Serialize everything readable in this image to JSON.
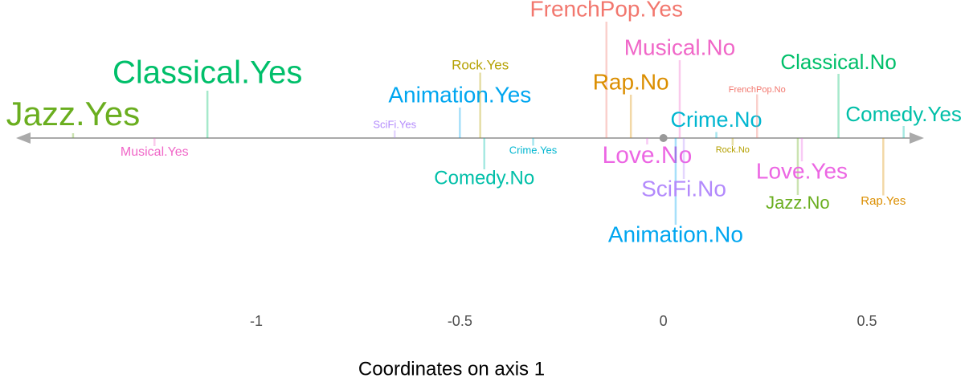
{
  "chart_data": {
    "type": "scatter",
    "x_label": "Coordinates on axis 1",
    "categories": [
      "Jazz.Yes",
      "Musical.Yes",
      "Classical.Yes",
      "SciFi.Yes",
      "Animation.Yes",
      "Rock.Yes",
      "Comedy.No",
      "Crime.Yes",
      "FrenchPop.Yes",
      "Rap.No",
      "Love.No",
      "Animation.No",
      "Musical.No",
      "SciFi.No",
      "Crime.No",
      "Rock.No",
      "FrenchPop.No",
      "Jazz.No",
      "Love.Yes",
      "Classical.No",
      "Rap.Yes",
      "Comedy.Yes"
    ],
    "x": [
      -1.45,
      -1.25,
      -1.12,
      -0.66,
      -0.5,
      -0.45,
      -0.44,
      -0.32,
      -0.14,
      -0.08,
      -0.04,
      0.03,
      0.04,
      0.05,
      0.13,
      0.17,
      0.23,
      0.33,
      0.34,
      0.43,
      0.54,
      0.59
    ],
    "colors": [
      "#6aae1f",
      "#f067c8",
      "#00bf6a",
      "#b38afc",
      "#00a6f0",
      "#b4a000",
      "#00bfa8",
      "#00b6d0",
      "#f2776e",
      "#db8e00",
      "#ec66e3",
      "#00a6f0",
      "#f067c8",
      "#b38afc",
      "#00b6d0",
      "#b4a000",
      "#f2776e",
      "#6aae1f",
      "#ec66e3",
      "#00bf6a",
      "#db8e00",
      "#00bfa8"
    ],
    "xlim": [
      -1.59,
      0.64
    ],
    "xticks": [
      -1.0,
      -0.5,
      0.0,
      0.5
    ],
    "origin": 0.0
  }
}
